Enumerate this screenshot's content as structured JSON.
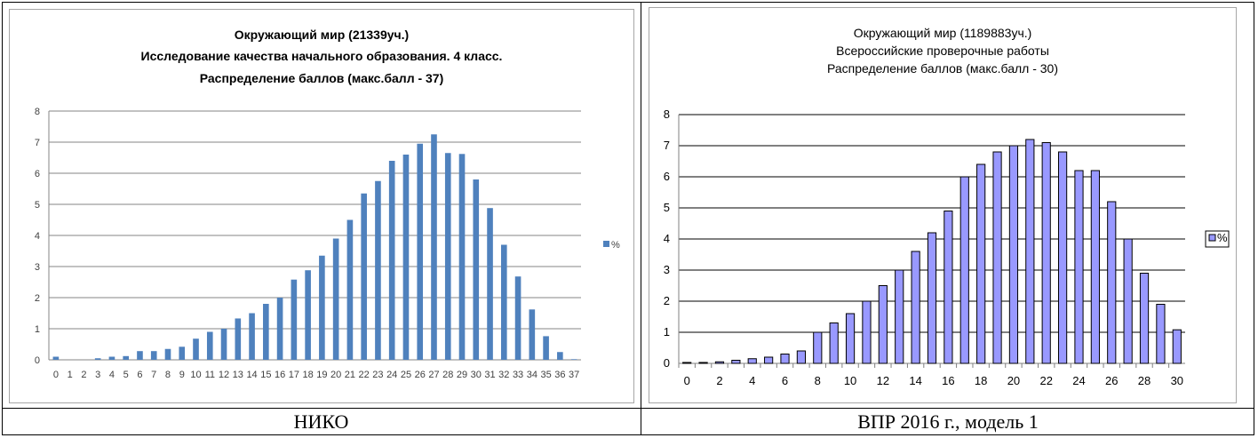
{
  "captions": {
    "left": "НИКО",
    "right": "ВПР 2016 г., модель 1"
  },
  "chart_data": [
    {
      "type": "bar",
      "title_lines": [
        "Окружающий мир (21339уч.)",
        "Исследование качества начального образования.  4 класс.",
        "Распределение баллов (макс.балл - 37)"
      ],
      "categories": [
        "0",
        "1",
        "2",
        "3",
        "4",
        "5",
        "6",
        "7",
        "8",
        "9",
        "10",
        "11",
        "12",
        "13",
        "14",
        "15",
        "16",
        "17",
        "18",
        "19",
        "20",
        "21",
        "22",
        "23",
        "24",
        "25",
        "26",
        "27",
        "28",
        "29",
        "30",
        "31",
        "32",
        "33",
        "34",
        "35",
        "36",
        "37"
      ],
      "series": [
        {
          "name": "%",
          "values": [
            0.1,
            0,
            0,
            0.05,
            0.1,
            0.12,
            0.28,
            0.28,
            0.35,
            0.42,
            0.68,
            0.9,
            1.0,
            1.33,
            1.5,
            1.8,
            2.0,
            2.58,
            2.88,
            3.35,
            3.9,
            4.5,
            5.35,
            5.75,
            6.4,
            6.6,
            6.95,
            7.25,
            6.65,
            6.62,
            5.8,
            4.88,
            3.7,
            2.68,
            1.62,
            0.76,
            0.25,
            0.02
          ]
        }
      ],
      "ylim": [
        0,
        8
      ],
      "yticks": [
        0,
        1,
        2,
        3,
        4,
        5,
        6,
        7,
        8
      ],
      "xlabel": "",
      "ylabel": "",
      "grid": true,
      "legend": "right",
      "colors": {
        "bar": "#4f81bd",
        "grid": "#868686",
        "axis": "#868686",
        "text": "#404040"
      }
    },
    {
      "type": "bar",
      "title_lines": [
        "Окружающий мир (1189883уч.)",
        "Всероссийские проверочные работы",
        "Распределение баллов (макс.балл - 30)"
      ],
      "categories": [
        "0",
        "1",
        "2",
        "3",
        "4",
        "5",
        "6",
        "7",
        "8",
        "9",
        "10",
        "11",
        "12",
        "13",
        "14",
        "15",
        "16",
        "17",
        "18",
        "19",
        "20",
        "21",
        "22",
        "23",
        "24",
        "25",
        "26",
        "27",
        "28",
        "29",
        "30"
      ],
      "x_tick_labels": [
        "0",
        "2",
        "4",
        "6",
        "8",
        "10",
        "12",
        "14",
        "16",
        "18",
        "20",
        "22",
        "24",
        "26",
        "28",
        "30"
      ],
      "series": [
        {
          "name": "%",
          "values": [
            0.03,
            0.03,
            0.05,
            0.1,
            0.15,
            0.2,
            0.3,
            0.4,
            1.0,
            1.3,
            1.6,
            2.0,
            2.5,
            3.0,
            3.6,
            4.2,
            4.9,
            6.0,
            6.4,
            6.8,
            7.0,
            7.2,
            7.1,
            6.8,
            6.2,
            6.2,
            5.2,
            4.0,
            2.9,
            1.9,
            1.08
          ]
        }
      ],
      "ylim": [
        0,
        8
      ],
      "yticks": [
        0,
        1,
        2,
        3,
        4,
        5,
        6,
        7,
        8
      ],
      "xlabel": "",
      "ylabel": "",
      "grid": true,
      "legend": "right",
      "colors": {
        "bar": "#9999ff",
        "bar_stroke": "#000000",
        "grid": "#000000",
        "axis": "#808080",
        "text": "#000000"
      }
    }
  ]
}
